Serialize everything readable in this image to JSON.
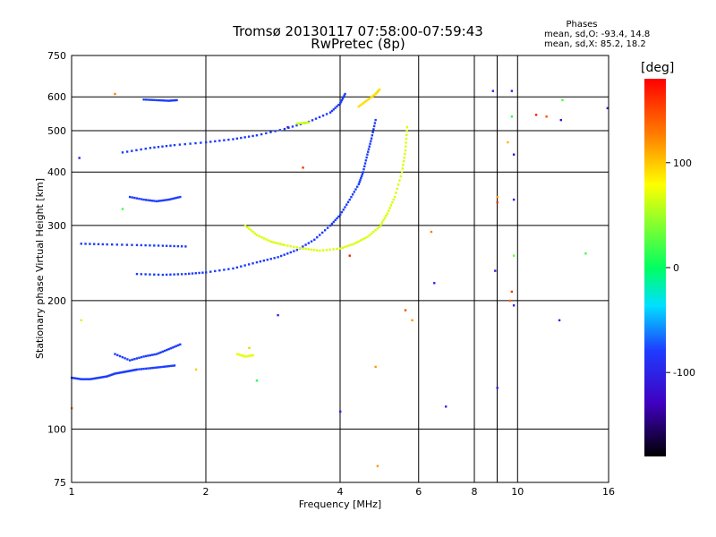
{
  "header": {
    "title_line1": "Tromsø 20130117 07:58:00-07:59:43",
    "title_line2": "RwPretec (8p)"
  },
  "phases": {
    "title": "Phases",
    "o_label": "mean, sd,O:",
    "o_values": "-93.4, 14.8",
    "x_label": "mean, sd,X:",
    "x_values": "85.2, 18.2"
  },
  "colorbar": {
    "unit": "[deg]",
    "ticks": [
      "100",
      "0",
      "-100"
    ],
    "range": [
      -180,
      180
    ],
    "tick_values": [
      100,
      0,
      -100
    ]
  },
  "chart_data": {
    "type": "scatter",
    "title": "Tromsø 20130117 07:58:00-07:59:43",
    "subtitle": "RwPretec (8p)",
    "xlabel": "Frequency [MHz]",
    "ylabel": "Stationary phase Virtual Height [km]",
    "xscale": "log",
    "yscale": "log",
    "xlim": [
      1,
      16
    ],
    "ylim": [
      75,
      750
    ],
    "xticks": [
      1,
      2,
      4,
      6,
      8,
      10,
      16
    ],
    "xtick_labels": [
      "1",
      "2",
      "4",
      "6",
      "8",
      "10",
      "16"
    ],
    "yticks": [
      75,
      100,
      200,
      300,
      400,
      500,
      600,
      750
    ],
    "ytick_labels": [
      "75",
      "100",
      "200",
      "300",
      "400",
      "500",
      "600",
      "750"
    ],
    "grid": true,
    "traces": [
      {
        "phase": -100,
        "color": "#1c3cff",
        "points": [
          [
            1.0,
            132
          ],
          [
            1.05,
            131
          ],
          [
            1.1,
            131
          ],
          [
            1.15,
            132
          ],
          [
            1.2,
            133
          ],
          [
            1.25,
            135
          ],
          [
            1.3,
            136
          ],
          [
            1.35,
            137
          ],
          [
            1.4,
            138
          ],
          [
            1.5,
            139
          ],
          [
            1.6,
            140
          ],
          [
            1.7,
            141
          ]
        ]
      },
      {
        "phase": -100,
        "color": "#1c3cff",
        "points": [
          [
            1.4,
            231
          ],
          [
            1.6,
            230
          ],
          [
            1.8,
            231
          ],
          [
            2.0,
            233
          ],
          [
            2.3,
            238
          ],
          [
            2.6,
            246
          ],
          [
            2.9,
            253
          ],
          [
            3.2,
            263
          ],
          [
            3.5,
            278
          ],
          [
            3.8,
            300
          ],
          [
            4.0,
            318
          ],
          [
            4.2,
            345
          ],
          [
            4.4,
            375
          ],
          [
            4.5,
            400
          ],
          [
            4.6,
            440
          ],
          [
            4.7,
            480
          ],
          [
            4.8,
            530
          ]
        ]
      },
      {
        "phase": -100,
        "color": "#1c3cff",
        "points": [
          [
            1.3,
            445
          ],
          [
            1.5,
            456
          ],
          [
            1.7,
            463
          ],
          [
            2.0,
            470
          ],
          [
            2.3,
            478
          ],
          [
            2.6,
            488
          ],
          [
            3.0,
            505
          ],
          [
            3.4,
            525
          ],
          [
            3.8,
            552
          ],
          [
            4.0,
            580
          ],
          [
            4.1,
            610
          ]
        ]
      },
      {
        "phase": -100,
        "color": "#1c3cff",
        "points": [
          [
            1.05,
            272
          ],
          [
            1.2,
            271
          ],
          [
            1.4,
            270
          ],
          [
            1.6,
            269
          ],
          [
            1.8,
            268
          ]
        ]
      },
      {
        "phase": -100,
        "color": "#1c3cff",
        "points": [
          [
            1.35,
            350
          ],
          [
            1.45,
            345
          ],
          [
            1.55,
            342
          ],
          [
            1.65,
            345
          ],
          [
            1.75,
            350
          ]
        ]
      },
      {
        "phase": -100,
        "color": "#1c3cff",
        "points": [
          [
            1.45,
            592
          ],
          [
            1.55,
            590
          ],
          [
            1.65,
            588
          ],
          [
            1.72,
            590
          ]
        ]
      },
      {
        "phase": -100,
        "color": "#1c3cff",
        "points": [
          [
            1.25,
            150
          ],
          [
            1.35,
            145
          ],
          [
            1.45,
            148
          ],
          [
            1.55,
            150
          ],
          [
            1.65,
            154
          ],
          [
            1.75,
            158
          ]
        ]
      },
      {
        "phase": 100,
        "color": "#d6ff00",
        "points": [
          [
            2.45,
            300
          ],
          [
            2.6,
            285
          ],
          [
            2.8,
            275
          ],
          [
            3.0,
            270
          ],
          [
            3.3,
            265
          ],
          [
            3.6,
            262
          ],
          [
            4.0,
            265
          ],
          [
            4.3,
            272
          ],
          [
            4.6,
            282
          ],
          [
            4.9,
            298
          ],
          [
            5.1,
            320
          ],
          [
            5.3,
            350
          ],
          [
            5.5,
            400
          ],
          [
            5.6,
            450
          ],
          [
            5.65,
            510
          ]
        ]
      },
      {
        "phase": 100,
        "color": "#ffde00",
        "points": [
          [
            4.4,
            570
          ],
          [
            4.6,
            590
          ],
          [
            4.8,
            610
          ],
          [
            4.9,
            625
          ]
        ]
      },
      {
        "phase": 100,
        "color": "#c8ff00",
        "points": [
          [
            3.2,
            520
          ],
          [
            3.4,
            523
          ]
        ]
      },
      {
        "phase": 100,
        "color": "#e6ff00",
        "points": [
          [
            2.35,
            150
          ],
          [
            2.45,
            148
          ],
          [
            2.55,
            149
          ]
        ]
      }
    ],
    "scattered": [
      {
        "x": 1.9,
        "y": 138,
        "phase": 100
      },
      {
        "x": 2.5,
        "y": 155,
        "phase": 100
      },
      {
        "x": 2.6,
        "y": 130,
        "phase": 10
      },
      {
        "x": 2.9,
        "y": 185,
        "phase": -100
      },
      {
        "x": 3.3,
        "y": 410,
        "phase": 160
      },
      {
        "x": 4.0,
        "y": 110,
        "phase": -100
      },
      {
        "x": 4.2,
        "y": 255,
        "phase": 170
      },
      {
        "x": 4.8,
        "y": 140,
        "phase": 120
      },
      {
        "x": 4.85,
        "y": 82,
        "phase": 120
      },
      {
        "x": 5.6,
        "y": 190,
        "phase": 150
      },
      {
        "x": 5.8,
        "y": 180,
        "phase": 120
      },
      {
        "x": 6.4,
        "y": 290,
        "phase": 130
      },
      {
        "x": 6.5,
        "y": 220,
        "phase": -100
      },
      {
        "x": 6.9,
        "y": 113,
        "phase": -100
      },
      {
        "x": 8.8,
        "y": 620,
        "phase": -100
      },
      {
        "x": 8.9,
        "y": 235,
        "phase": -100
      },
      {
        "x": 9.0,
        "y": 340,
        "phase": 160
      },
      {
        "x": 9.0,
        "y": 350,
        "phase": 120
      },
      {
        "x": 9.0,
        "y": 125,
        "phase": -100
      },
      {
        "x": 9.5,
        "y": 470,
        "phase": 110
      },
      {
        "x": 9.6,
        "y": 200,
        "phase": 140
      },
      {
        "x": 9.7,
        "y": 210,
        "phase": 160
      },
      {
        "x": 9.7,
        "y": 620,
        "phase": -100
      },
      {
        "x": 9.7,
        "y": 540,
        "phase": 10
      },
      {
        "x": 9.8,
        "y": 345,
        "phase": -110
      },
      {
        "x": 9.8,
        "y": 440,
        "phase": -120
      },
      {
        "x": 9.8,
        "y": 255,
        "phase": 30
      },
      {
        "x": 9.8,
        "y": 195,
        "phase": -100
      },
      {
        "x": 11.0,
        "y": 545,
        "phase": 170
      },
      {
        "x": 11.6,
        "y": 540,
        "phase": 150
      },
      {
        "x": 12.4,
        "y": 180,
        "phase": -100
      },
      {
        "x": 12.5,
        "y": 530,
        "phase": -120
      },
      {
        "x": 12.6,
        "y": 590,
        "phase": 20
      },
      {
        "x": 14.2,
        "y": 258,
        "phase": 20
      },
      {
        "x": 15.9,
        "y": 565,
        "phase": -100
      },
      {
        "x": 1.25,
        "y": 610,
        "phase": 130
      },
      {
        "x": 1.04,
        "y": 432,
        "phase": -100
      },
      {
        "x": 1.05,
        "y": 180,
        "phase": 60
      },
      {
        "x": 1.0,
        "y": 112,
        "phase": 130
      },
      {
        "x": 1.3,
        "y": 328,
        "phase": 20
      },
      {
        "x": 3.05,
        "y": 510,
        "phase": -100
      }
    ]
  }
}
